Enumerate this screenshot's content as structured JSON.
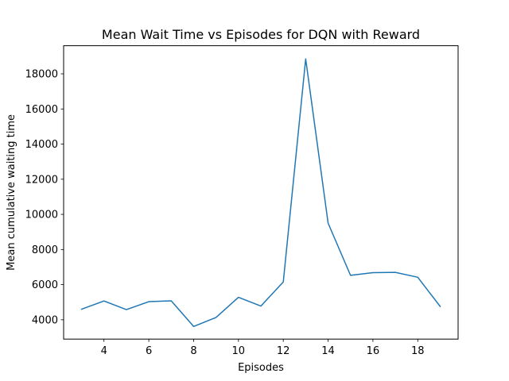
{
  "chart_data": {
    "type": "line",
    "title": "Mean Wait Time vs Episodes for DQN with Reward",
    "xlabel": "Episodes",
    "ylabel": "Mean cumulative waiting time",
    "xlim": [
      2.2,
      19.8
    ],
    "ylim": [
      2900,
      19600
    ],
    "xticks": [
      4,
      6,
      8,
      10,
      12,
      14,
      16,
      18
    ],
    "yticks": [
      4000,
      6000,
      8000,
      10000,
      12000,
      14000,
      16000,
      18000
    ],
    "grid": false,
    "series": [
      {
        "color": "#1f77b4",
        "x": [
          3,
          4,
          5,
          6,
          7,
          8,
          9,
          10,
          11,
          12,
          13,
          14,
          15,
          16,
          17,
          18,
          19
        ],
        "y": [
          4600,
          5070,
          4580,
          5030,
          5080,
          3620,
          4130,
          5280,
          4780,
          6150,
          18850,
          9500,
          6530,
          6680,
          6700,
          6420,
          4760
        ]
      }
    ]
  }
}
